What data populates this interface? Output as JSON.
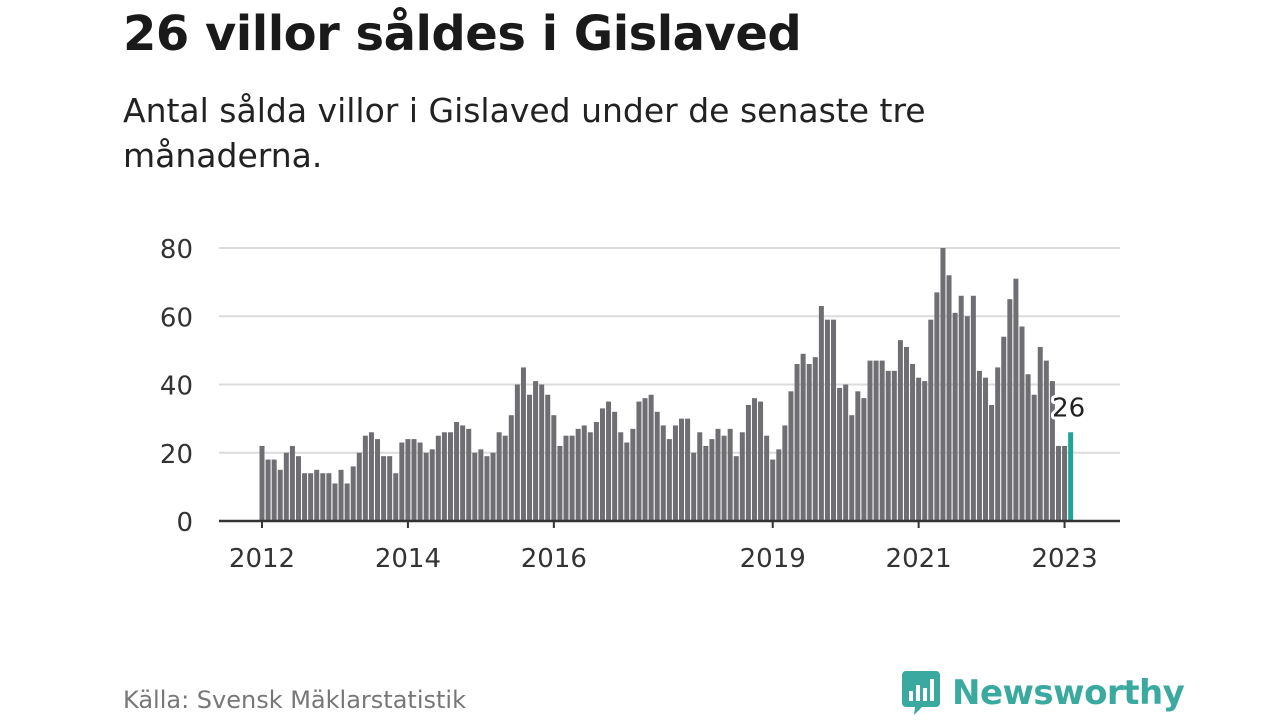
{
  "header": {
    "title": "26 villor såldes i Gislaved",
    "subtitle": "Antal sålda villor i Gislaved under de senaste tre månaderna."
  },
  "footer": {
    "source": "Källa: Svensk Mäklarstatistik",
    "brand": "Newsworthy",
    "brand_icon": "newsworthy-chart-bubble-icon"
  },
  "colors": {
    "bar": "#6e6e73",
    "highlight": "#20a39a",
    "grid": "#dcdcdc",
    "axis": "#333333",
    "brand": "#3aa99f"
  },
  "chart_data": {
    "type": "bar",
    "title": "26 villor såldes i Gislaved",
    "subtitle": "Antal sålda villor i Gislaved under de senaste tre månaderna.",
    "xlabel": "",
    "ylabel": "",
    "ylim": [
      0,
      80
    ],
    "yticks": [
      0,
      20,
      40,
      60,
      80
    ],
    "xtick_labels": [
      {
        "label": "2012",
        "index": 0
      },
      {
        "label": "2014",
        "index": 24
      },
      {
        "label": "2016",
        "index": 48
      },
      {
        "label": "2019",
        "index": 84
      },
      {
        "label": "2021",
        "index": 108
      },
      {
        "label": "2023",
        "index": 132
      }
    ],
    "start": "2012-01",
    "end": "2023-02",
    "grid": true,
    "highlight_index": 133,
    "highlight_label": "26",
    "values": [
      22,
      18,
      18,
      15,
      20,
      22,
      19,
      14,
      14,
      15,
      14,
      14,
      11,
      15,
      11,
      16,
      20,
      25,
      26,
      24,
      19,
      19,
      14,
      23,
      24,
      24,
      23,
      20,
      21,
      25,
      26,
      26,
      29,
      28,
      27,
      20,
      21,
      19,
      20,
      26,
      25,
      31,
      40,
      45,
      37,
      41,
      40,
      37,
      31,
      22,
      25,
      25,
      27,
      28,
      26,
      29,
      33,
      35,
      32,
      26,
      23,
      27,
      35,
      36,
      37,
      32,
      28,
      24,
      28,
      30,
      30,
      20,
      26,
      22,
      24,
      27,
      25,
      27,
      19,
      26,
      34,
      36,
      35,
      25,
      18,
      21,
      28,
      38,
      46,
      49,
      46,
      48,
      63,
      59,
      59,
      39,
      40,
      31,
      38,
      36,
      47,
      47,
      47,
      44,
      44,
      53,
      51,
      46,
      42,
      41,
      59,
      67,
      80,
      72,
      61,
      66,
      60,
      66,
      44,
      42,
      34,
      45,
      54,
      65,
      71,
      57,
      43,
      37,
      51,
      47,
      41,
      22,
      22,
      26
    ]
  }
}
